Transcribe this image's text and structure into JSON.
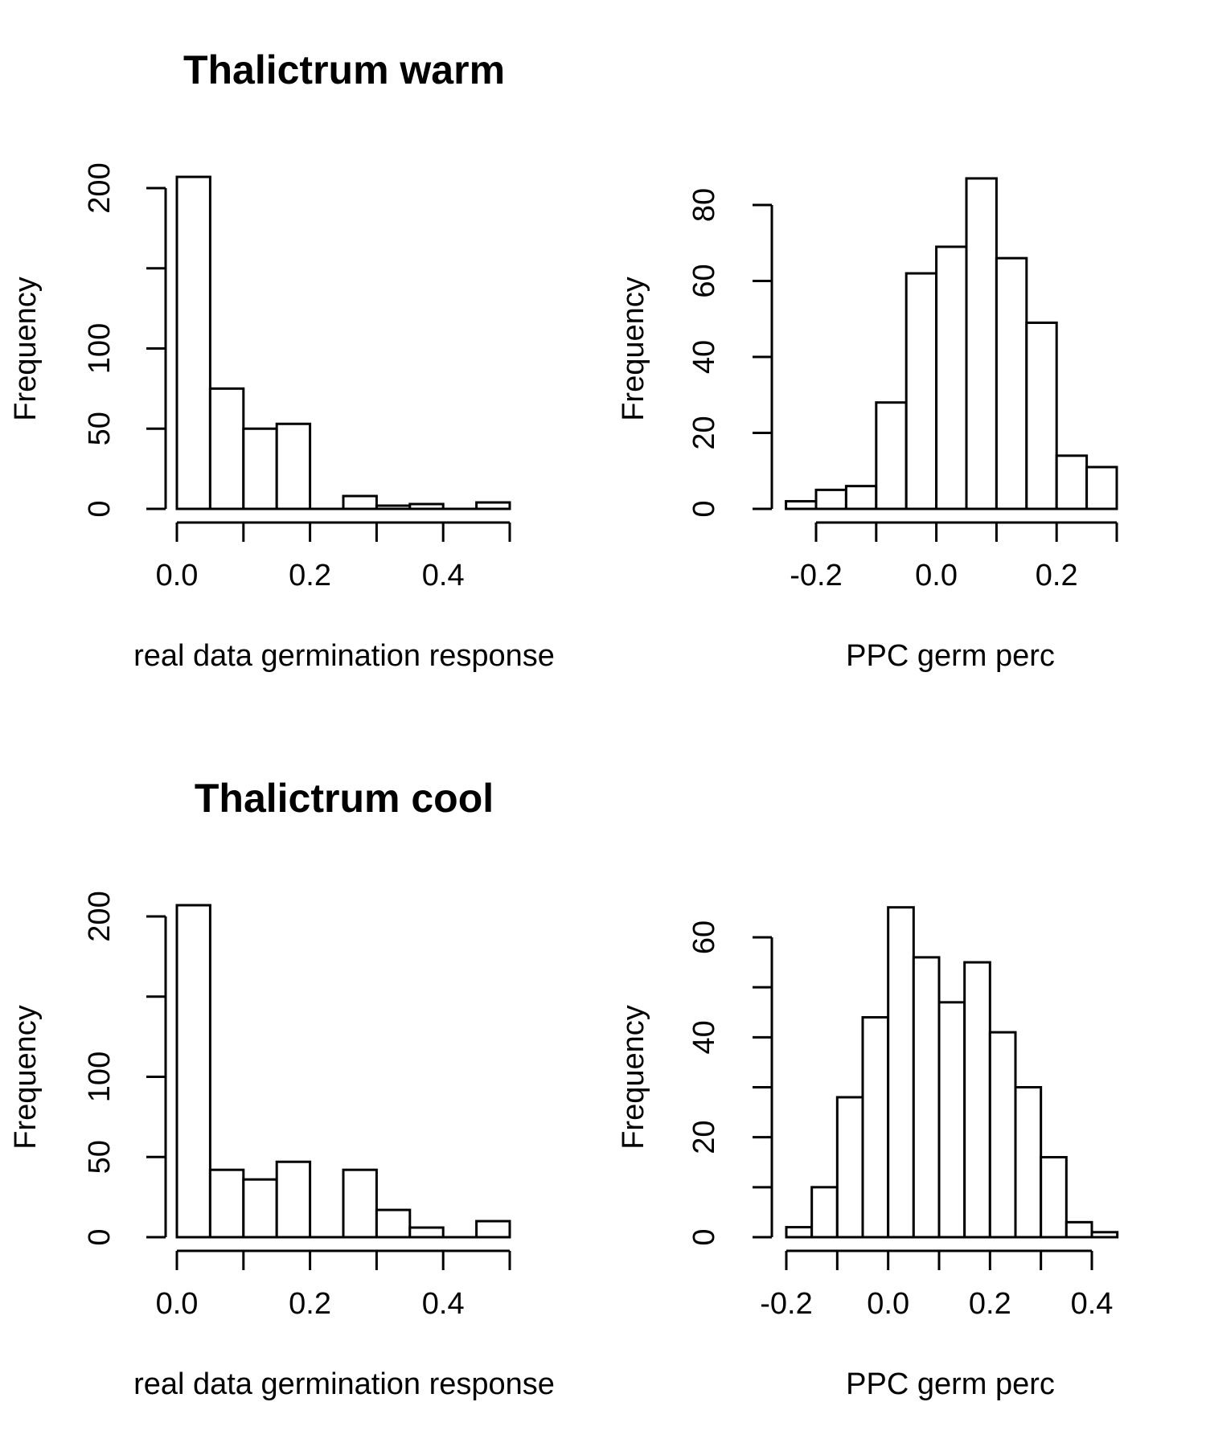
{
  "chart_data": [
    {
      "type": "bar",
      "title": "Thalictrum warm",
      "xlabel": "real data germination response",
      "ylabel": "Frequency",
      "bin_edges": [
        0.0,
        0.05,
        0.1,
        0.15,
        0.2,
        0.25,
        0.3,
        0.35,
        0.4,
        0.45,
        0.5
      ],
      "values": [
        207,
        75,
        50,
        53,
        0,
        8,
        2,
        3,
        0,
        4
      ],
      "xlim": [
        0.0,
        0.5
      ],
      "ylim": [
        0,
        200
      ],
      "x_ticks": [
        0.0,
        0.1,
        0.2,
        0.3,
        0.4,
        0.5
      ],
      "x_tick_labels": [
        "0.0",
        "",
        "0.2",
        "",
        "0.4",
        ""
      ],
      "y_ticks": [
        0,
        50,
        100,
        150,
        200
      ],
      "y_tick_labels": [
        "0",
        "50",
        "100",
        "",
        "200"
      ]
    },
    {
      "type": "bar",
      "title": "",
      "xlabel": "PPC germ perc",
      "ylabel": "Frequency",
      "bin_edges": [
        -0.25,
        -0.2,
        -0.15,
        -0.1,
        -0.05,
        0.0,
        0.05,
        0.1,
        0.15,
        0.2,
        0.25,
        0.3
      ],
      "values": [
        2,
        5,
        6,
        28,
        62,
        69,
        87,
        66,
        49,
        14,
        11
      ],
      "xlim": [
        -0.2,
        0.3
      ],
      "ylim": [
        0,
        80
      ],
      "x_ticks": [
        -0.2,
        -0.1,
        0.0,
        0.1,
        0.2,
        0.3
      ],
      "x_tick_labels": [
        "-0.2",
        "",
        "0.0",
        "",
        "0.2",
        ""
      ],
      "y_ticks": [
        0,
        20,
        40,
        60,
        80
      ],
      "y_tick_labels": [
        "0",
        "20",
        "40",
        "60",
        "80"
      ]
    },
    {
      "type": "bar",
      "title": "Thalictrum cool",
      "xlabel": "real data germination response",
      "ylabel": "Frequency",
      "bin_edges": [
        0.0,
        0.05,
        0.1,
        0.15,
        0.2,
        0.25,
        0.3,
        0.35,
        0.4,
        0.45,
        0.5
      ],
      "values": [
        207,
        42,
        36,
        47,
        0,
        42,
        17,
        6,
        0,
        10
      ],
      "xlim": [
        0.0,
        0.5
      ],
      "ylim": [
        0,
        200
      ],
      "x_ticks": [
        0.0,
        0.1,
        0.2,
        0.3,
        0.4,
        0.5
      ],
      "x_tick_labels": [
        "0.0",
        "",
        "0.2",
        "",
        "0.4",
        ""
      ],
      "y_ticks": [
        0,
        50,
        100,
        150,
        200
      ],
      "y_tick_labels": [
        "0",
        "50",
        "100",
        "",
        "200"
      ]
    },
    {
      "type": "bar",
      "title": "",
      "xlabel": "PPC germ perc",
      "ylabel": "Frequency",
      "bin_edges": [
        -0.2,
        -0.15,
        -0.1,
        -0.05,
        0.0,
        0.05,
        0.1,
        0.15,
        0.2,
        0.25,
        0.3,
        0.35,
        0.4,
        0.45
      ],
      "values": [
        2,
        10,
        28,
        44,
        66,
        56,
        47,
        55,
        41,
        30,
        16,
        3,
        1
      ],
      "xlim": [
        -0.2,
        0.4
      ],
      "ylim": [
        0,
        60
      ],
      "x_ticks": [
        -0.2,
        -0.1,
        0.0,
        0.1,
        0.2,
        0.3,
        0.4
      ],
      "x_tick_labels": [
        "-0.2",
        "",
        "0.0",
        "",
        "0.2",
        "",
        "0.4"
      ],
      "y_ticks": [
        0,
        10,
        20,
        30,
        40,
        50,
        60
      ],
      "y_tick_labels": [
        "0",
        "",
        "20",
        "",
        "40",
        "",
        "60"
      ]
    }
  ]
}
